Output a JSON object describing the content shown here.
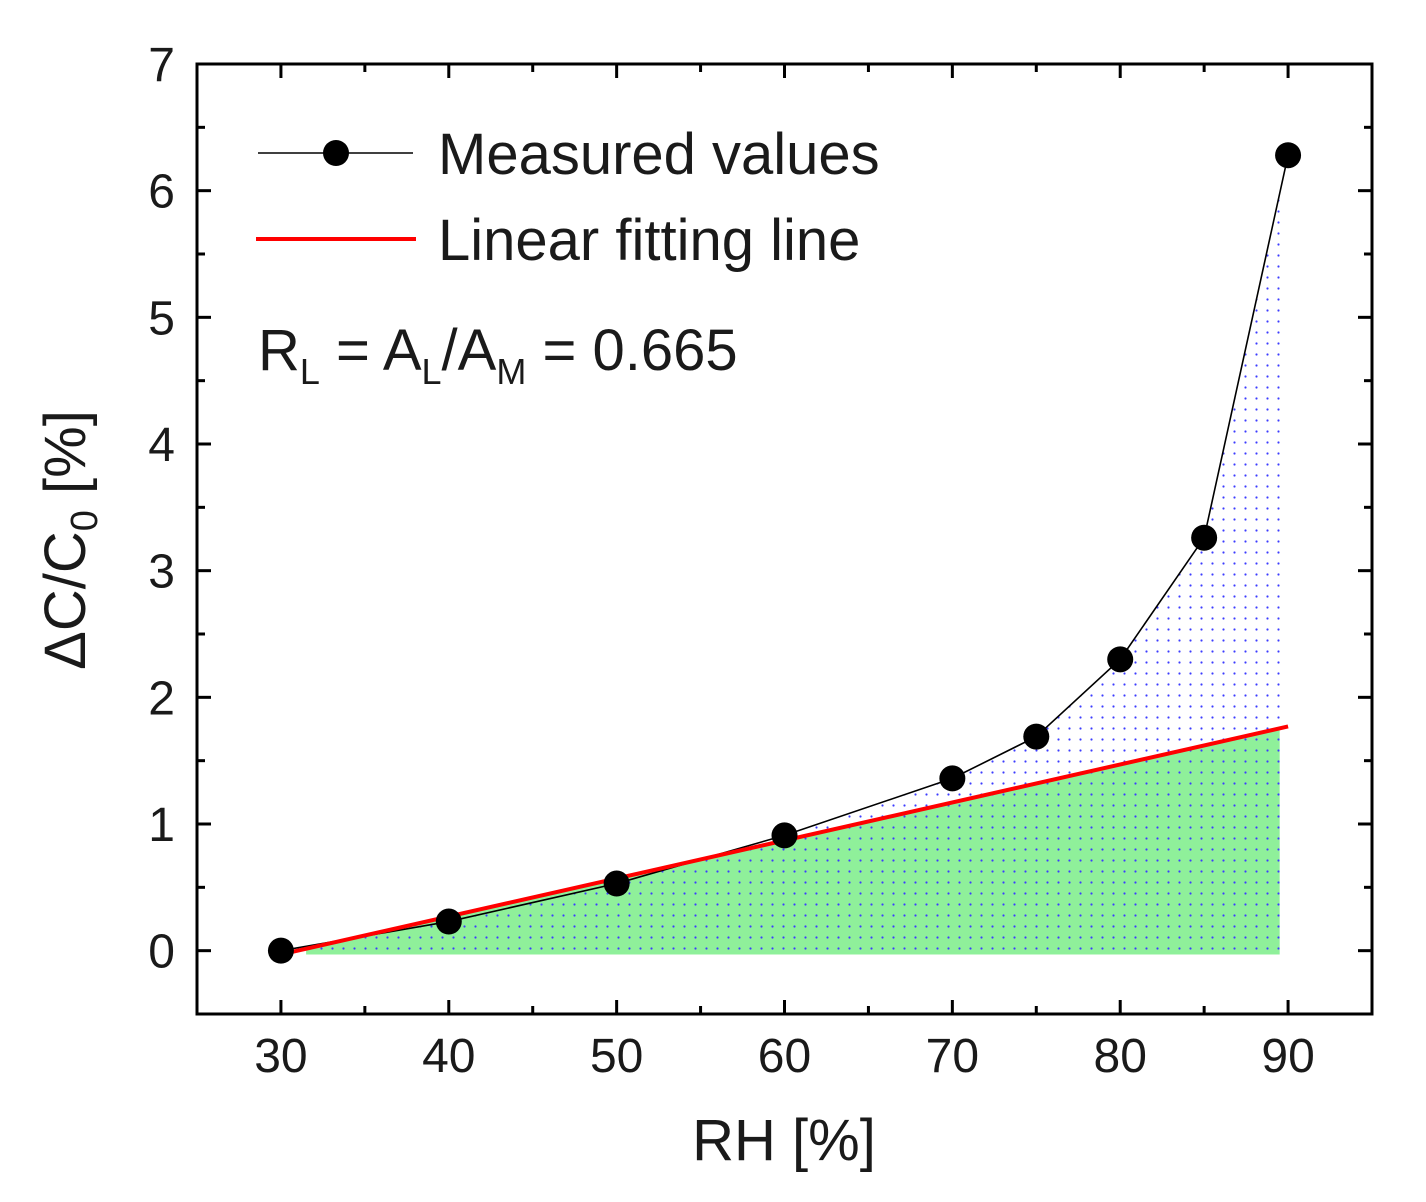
{
  "chart_data": {
    "type": "line",
    "title": "",
    "xlabel": "RH [%]",
    "ylabel": "ΔC/C₀ [%]",
    "xlim": [
      25,
      95
    ],
    "ylim": [
      -0.5,
      7
    ],
    "x_ticks": [
      30,
      40,
      50,
      60,
      70,
      80,
      90
    ],
    "x_tick_labels": [
      "30",
      "40",
      "50",
      "60",
      "70",
      "80",
      "90"
    ],
    "y_ticks": [
      0,
      1,
      2,
      3,
      4,
      5,
      6,
      7
    ],
    "y_tick_labels": [
      "0",
      "1",
      "2",
      "3",
      "4",
      "5",
      "6",
      "7"
    ],
    "x_minor_step": 5,
    "y_minor_step": 0.5,
    "grid": false,
    "legend_position": "top-left",
    "series": [
      {
        "name": "Measured values",
        "style": "line-with-markers",
        "color": "#000000",
        "x": [
          30,
          40,
          50,
          60,
          70,
          75,
          80,
          85,
          90
        ],
        "values": [
          0.0,
          0.23,
          0.53,
          0.91,
          1.36,
          1.69,
          2.3,
          3.26,
          6.28
        ]
      },
      {
        "name": "Linear fitting line",
        "style": "line",
        "color": "#ff0000",
        "x": [
          30,
          90
        ],
        "values": [
          -0.03,
          1.77
        ]
      }
    ],
    "shaded_areas": [
      {
        "name": "A_M",
        "between": "Measured values and y=0",
        "color": "#4a4aff",
        "pattern": "dotted"
      },
      {
        "name": "A_L",
        "between": "Linear fitting line and y=0",
        "color": "#90ee90",
        "pattern": "solid"
      }
    ],
    "annotation": {
      "prefix": "R",
      "prefix_sub": "L",
      "equals1": " = ",
      "a1": "A",
      "a1_sub": "L",
      "slash": "/",
      "a2": "A",
      "a2_sub": "M",
      "equals2": " = ",
      "value": "0.665"
    },
    "ylabel_parts": {
      "main": "ΔC/C",
      "sub": "0",
      "unit": " [%]"
    }
  }
}
